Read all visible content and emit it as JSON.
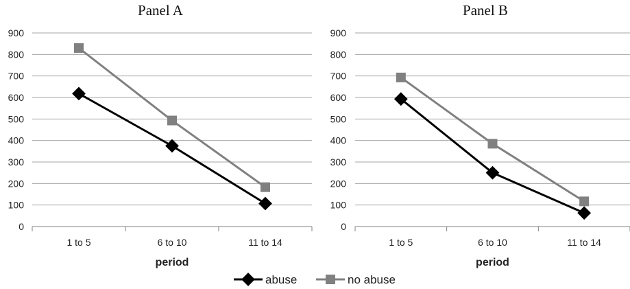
{
  "chart_data": [
    {
      "type": "line",
      "title": "Panel A",
      "xlabel": "period",
      "ylabel": "",
      "categories": [
        "1 to 5",
        "6 to 10",
        "11 to 14"
      ],
      "ylim": [
        0,
        900
      ],
      "yticks": [
        0,
        100,
        200,
        300,
        400,
        500,
        600,
        700,
        800,
        900
      ],
      "grid": true,
      "series": [
        {
          "name": "abuse",
          "values": [
            618,
            375,
            107
          ],
          "color": "#000000",
          "marker": "diamond"
        },
        {
          "name": "no abuse",
          "values": [
            830,
            493,
            183
          ],
          "color": "#808080",
          "marker": "square"
        }
      ]
    },
    {
      "type": "line",
      "title": "Panel B",
      "xlabel": "period",
      "ylabel": "",
      "categories": [
        "1 to 5",
        "6 to 10",
        "11 to 14"
      ],
      "ylim": [
        0,
        900
      ],
      "yticks": [
        0,
        100,
        200,
        300,
        400,
        500,
        600,
        700,
        800,
        900
      ],
      "grid": true,
      "series": [
        {
          "name": "abuse",
          "values": [
            593,
            250,
            63
          ],
          "color": "#000000",
          "marker": "diamond"
        },
        {
          "name": "no abuse",
          "values": [
            693,
            385,
            117
          ],
          "color": "#808080",
          "marker": "square"
        }
      ]
    }
  ],
  "legend": {
    "placement": "bottom-center",
    "items": [
      {
        "label": "abuse",
        "color": "#000000",
        "marker": "diamond"
      },
      {
        "label": "no abuse",
        "color": "#808080",
        "marker": "square"
      }
    ]
  }
}
